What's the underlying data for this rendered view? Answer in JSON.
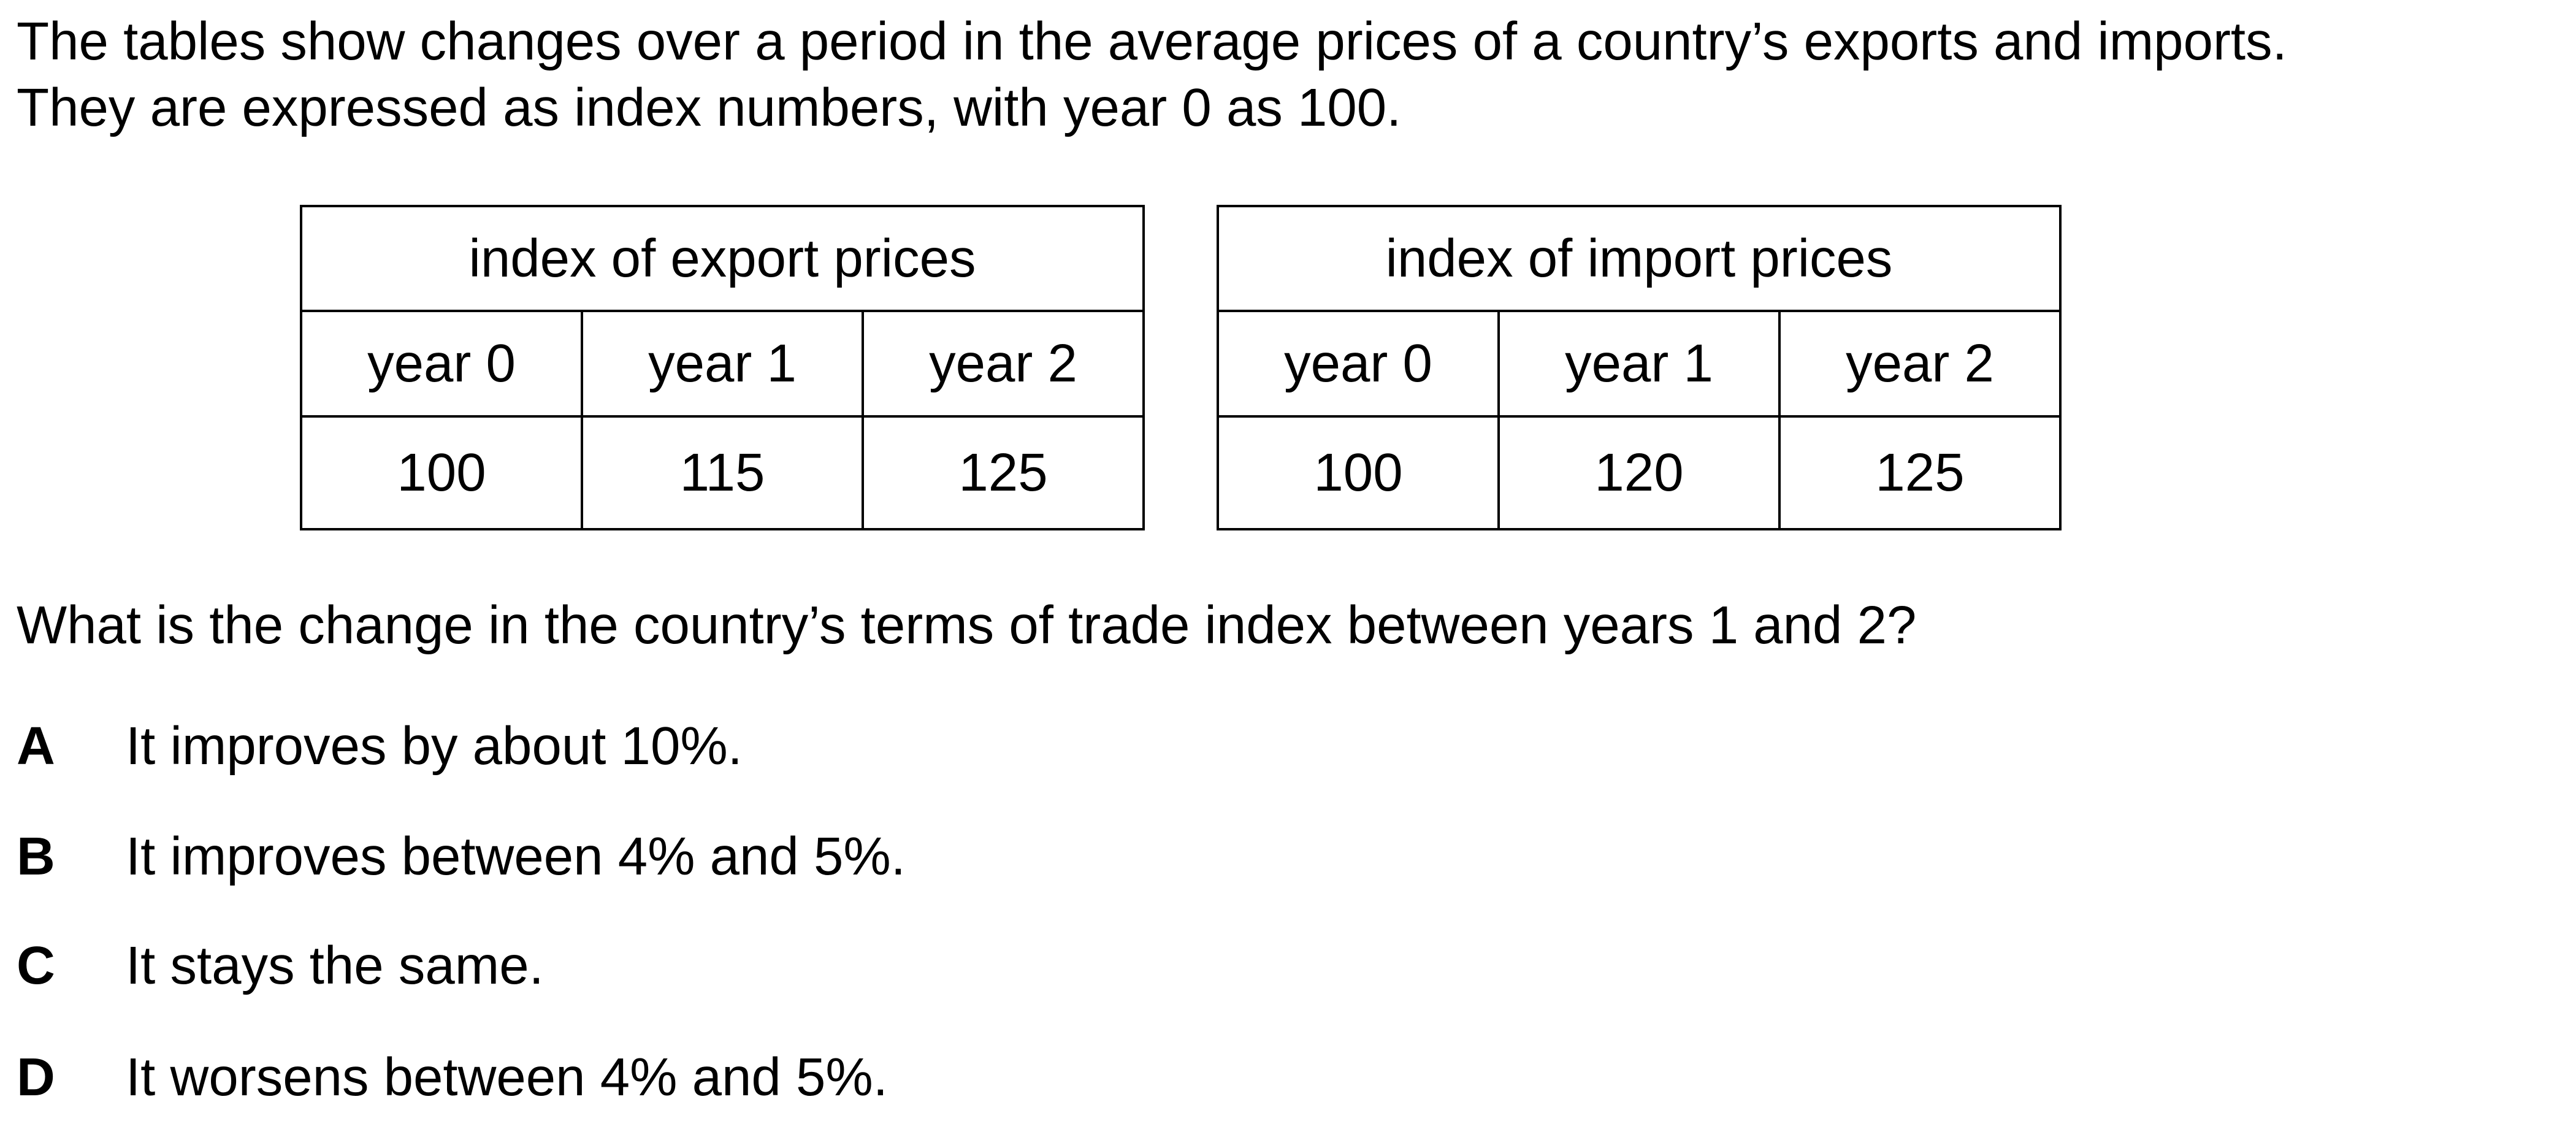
{
  "intro": {
    "line1": "The tables show changes over a period in the average prices of a country’s exports and imports.",
    "line2": "They are expressed as index numbers, with year 0 as 100."
  },
  "tables": [
    {
      "title": "index of export prices",
      "headers": [
        "year 0",
        "year 1",
        "year 2"
      ],
      "values": [
        "100",
        "115",
        "125"
      ]
    },
    {
      "title": "index of import prices",
      "headers": [
        "year 0",
        "year 1",
        "year 2"
      ],
      "values": [
        "100",
        "120",
        "125"
      ]
    }
  ],
  "question": "What is the change in the country’s terms of trade index between years 1 and 2?",
  "options": [
    {
      "letter": "A",
      "text": "It improves by about 10%."
    },
    {
      "letter": "B",
      "text": "It improves between 4% and 5%."
    },
    {
      "letter": "C",
      "text": "It stays the same."
    },
    {
      "letter": "D",
      "text": "It worsens between 4% and 5%."
    }
  ]
}
